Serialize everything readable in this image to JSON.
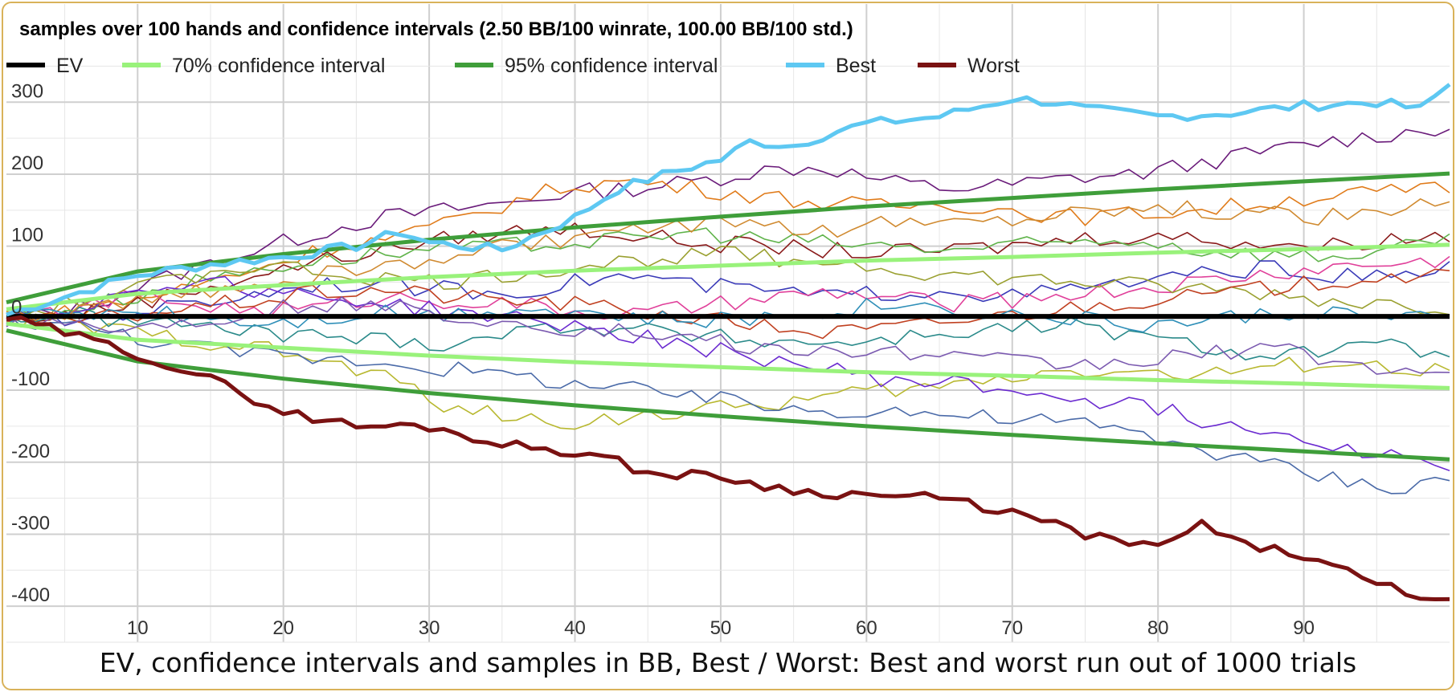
{
  "chart_data": {
    "type": "line",
    "title": "samples over 100 hands and confidence intervals (2.50 BB/100 winrate, 100.00 BB/100 std.)",
    "caption": "EV, confidence intervals and samples in BB, Best / Worst: Best and worst run out of 1000 trials",
    "xlim": [
      1,
      100
    ],
    "ylim": [
      -450,
      375
    ],
    "x_ticks": [
      10,
      20,
      30,
      40,
      50,
      60,
      70,
      80,
      90
    ],
    "y_ticks": [
      300,
      200,
      100,
      0,
      -100,
      -200,
      -300,
      -400
    ],
    "grid": true,
    "legend_position": "top-left",
    "legend": [
      {
        "label": "EV",
        "color": "#000000"
      },
      {
        "label": "70% confidence interval",
        "color": "#99f27b"
      },
      {
        "label": "95% confidence interval",
        "color": "#3f9e3a"
      },
      {
        "label": "Best",
        "color": "#5ec8f2"
      },
      {
        "label": "Worst",
        "color": "#7a1212"
      }
    ],
    "series": [
      {
        "name": "EV",
        "color": "#000000",
        "x": [
          1,
          100
        ],
        "y": [
          2.5,
          2.5
        ]
      },
      {
        "name": "70% confidence interval",
        "color": "#99f27b",
        "x": [
          1,
          10,
          20,
          30,
          40,
          50,
          60,
          70,
          80,
          90,
          100
        ],
        "y": [
          12.5,
          34,
          46,
          57,
          66,
          73,
          80,
          85,
          91,
          96,
          102
        ]
      },
      {
        "name": "70% confidence interval",
        "color": "#99f27b",
        "x": [
          1,
          10,
          20,
          30,
          40,
          50,
          60,
          70,
          80,
          90,
          100
        ],
        "y": [
          -7.5,
          -30,
          -41,
          -52,
          -61,
          -68,
          -75,
          -80,
          -86,
          -91,
          -97
        ]
      },
      {
        "name": "95% confidence interval",
        "color": "#3f9e3a",
        "x": [
          1,
          10,
          20,
          30,
          40,
          50,
          60,
          70,
          80,
          90,
          100
        ],
        "y": [
          22,
          65,
          89,
          109,
          126,
          141,
          155,
          167,
          179,
          190,
          201
        ]
      },
      {
        "name": "95% confidence interval",
        "color": "#3f9e3a",
        "x": [
          1,
          10,
          20,
          30,
          40,
          50,
          60,
          70,
          80,
          90,
          100
        ],
        "y": [
          -17,
          -60,
          -84,
          -104,
          -121,
          -136,
          -150,
          -162,
          -174,
          -185,
          -196
        ]
      },
      {
        "name": "Best",
        "color": "#5ec8f2",
        "x": [
          1,
          5,
          10,
          15,
          20,
          25,
          28,
          30,
          35,
          40,
          43,
          47,
          50,
          52,
          55,
          58,
          60,
          65,
          70,
          73,
          75,
          80,
          85,
          90,
          95,
          98,
          100
        ],
        "y": [
          5,
          30,
          60,
          75,
          85,
          100,
          120,
          105,
          95,
          140,
          180,
          205,
          220,
          245,
          240,
          260,
          270,
          280,
          305,
          300,
          290,
          280,
          285,
          295,
          300,
          290,
          325
        ]
      },
      {
        "name": "Worst",
        "color": "#7a1212",
        "x": [
          1,
          5,
          10,
          15,
          20,
          25,
          30,
          35,
          40,
          43,
          45,
          50,
          55,
          60,
          65,
          70,
          75,
          80,
          83,
          85,
          90,
          95,
          100
        ],
        "y": [
          0,
          -20,
          -50,
          -85,
          -130,
          -150,
          -150,
          -175,
          -185,
          -200,
          -215,
          -220,
          -240,
          -245,
          -250,
          -270,
          -300,
          -320,
          -285,
          -310,
          -330,
          -370,
          -395
        ]
      }
    ],
    "samples": [
      {
        "color": "#6a1b7a",
        "y": [
          0,
          10,
          40,
          70,
          95,
          120,
          140,
          150,
          160,
          175,
          180,
          190,
          205,
          210,
          190,
          180,
          185,
          195,
          200,
          215,
          230,
          245,
          255,
          265
        ]
      },
      {
        "color": "#e07b1a",
        "y": [
          0,
          8,
          25,
          45,
          70,
          95,
          110,
          130,
          160,
          185,
          190,
          180,
          170,
          160,
          155,
          160,
          150,
          140,
          145,
          150,
          160,
          170,
          175,
          180
        ]
      },
      {
        "color": "#8a1a1a",
        "y": [
          0,
          5,
          20,
          40,
          60,
          80,
          95,
          110,
          120,
          125,
          115,
          105,
          100,
          95,
          90,
          95,
          100,
          110,
          115,
          110,
          105,
          100,
          110,
          115
        ]
      },
      {
        "color": "#5fb34a",
        "y": [
          0,
          12,
          30,
          50,
          70,
          80,
          90,
          95,
          100,
          105,
          110,
          120,
          110,
          105,
          100,
          95,
          100,
          105,
          110,
          95,
          90,
          85,
          95,
          105
        ]
      },
      {
        "color": "#3a3ab8",
        "y": [
          0,
          -5,
          10,
          20,
          35,
          50,
          45,
          40,
          35,
          50,
          60,
          45,
          40,
          30,
          35,
          40,
          30,
          40,
          50,
          60,
          70,
          60,
          55,
          70
        ]
      },
      {
        "color": "#e0409a",
        "y": [
          0,
          10,
          30,
          20,
          10,
          15,
          30,
          25,
          20,
          10,
          5,
          15,
          25,
          35,
          30,
          20,
          25,
          35,
          40,
          50,
          60,
          70,
          75,
          80
        ]
      },
      {
        "color": "#b8b830",
        "y": [
          0,
          -8,
          -20,
          -30,
          -40,
          -60,
          -80,
          -120,
          -140,
          -145,
          -135,
          -130,
          -120,
          -110,
          -100,
          -95,
          -80,
          -70,
          -75,
          -80,
          -70,
          -60,
          -70,
          -75
        ]
      },
      {
        "color": "#4a6aa8",
        "y": [
          0,
          -10,
          -25,
          -40,
          -50,
          -55,
          -60,
          -70,
          -80,
          -90,
          -100,
          -110,
          -120,
          -130,
          -125,
          -135,
          -140,
          -145,
          -160,
          -180,
          -200,
          -220,
          -235,
          -225
        ]
      },
      {
        "color": "#2a8a8a",
        "y": [
          0,
          5,
          -5,
          -10,
          -20,
          -25,
          -30,
          -35,
          -20,
          -10,
          -15,
          -25,
          -30,
          -35,
          -30,
          -20,
          -15,
          -10,
          -25,
          -40,
          -50,
          -45,
          -40,
          -50
        ]
      },
      {
        "color": "#6b2bd0",
        "y": [
          0,
          15,
          35,
          55,
          40,
          30,
          20,
          10,
          0,
          -10,
          -25,
          -40,
          -55,
          -70,
          -85,
          -90,
          -100,
          -110,
          -120,
          -140,
          -155,
          -170,
          -190,
          -205
        ]
      },
      {
        "color": "#9aa030",
        "y": [
          0,
          20,
          40,
          60,
          75,
          65,
          55,
          50,
          60,
          70,
          80,
          90,
          85,
          80,
          70,
          60,
          55,
          50,
          45,
          40,
          35,
          25,
          20,
          15
        ]
      },
      {
        "color": "#c04020",
        "y": [
          0,
          -5,
          5,
          15,
          25,
          35,
          40,
          30,
          25,
          20,
          10,
          0,
          -10,
          -20,
          -15,
          -5,
          5,
          15,
          25,
          30,
          40,
          50,
          60,
          55
        ]
      },
      {
        "color": "#2f8fb8",
        "y": [
          0,
          6,
          12,
          5,
          -5,
          0,
          10,
          5,
          15,
          10,
          0,
          -5,
          0,
          10,
          20,
          15,
          5,
          0,
          -10,
          -5,
          5,
          10,
          0,
          -5
        ]
      },
      {
        "color": "#7b5ab0",
        "y": [
          0,
          -6,
          -15,
          -5,
          10,
          20,
          15,
          5,
          -5,
          -15,
          -20,
          -30,
          -40,
          -50,
          -45,
          -55,
          -60,
          -65,
          -60,
          -50,
          -40,
          -55,
          -70,
          -80
        ]
      },
      {
        "color": "#d08a30",
        "y": [
          0,
          8,
          22,
          35,
          50,
          60,
          70,
          85,
          100,
          110,
          120,
          130,
          125,
          120,
          130,
          135,
          140,
          150,
          155,
          150,
          145,
          140,
          150,
          160
        ]
      }
    ]
  }
}
